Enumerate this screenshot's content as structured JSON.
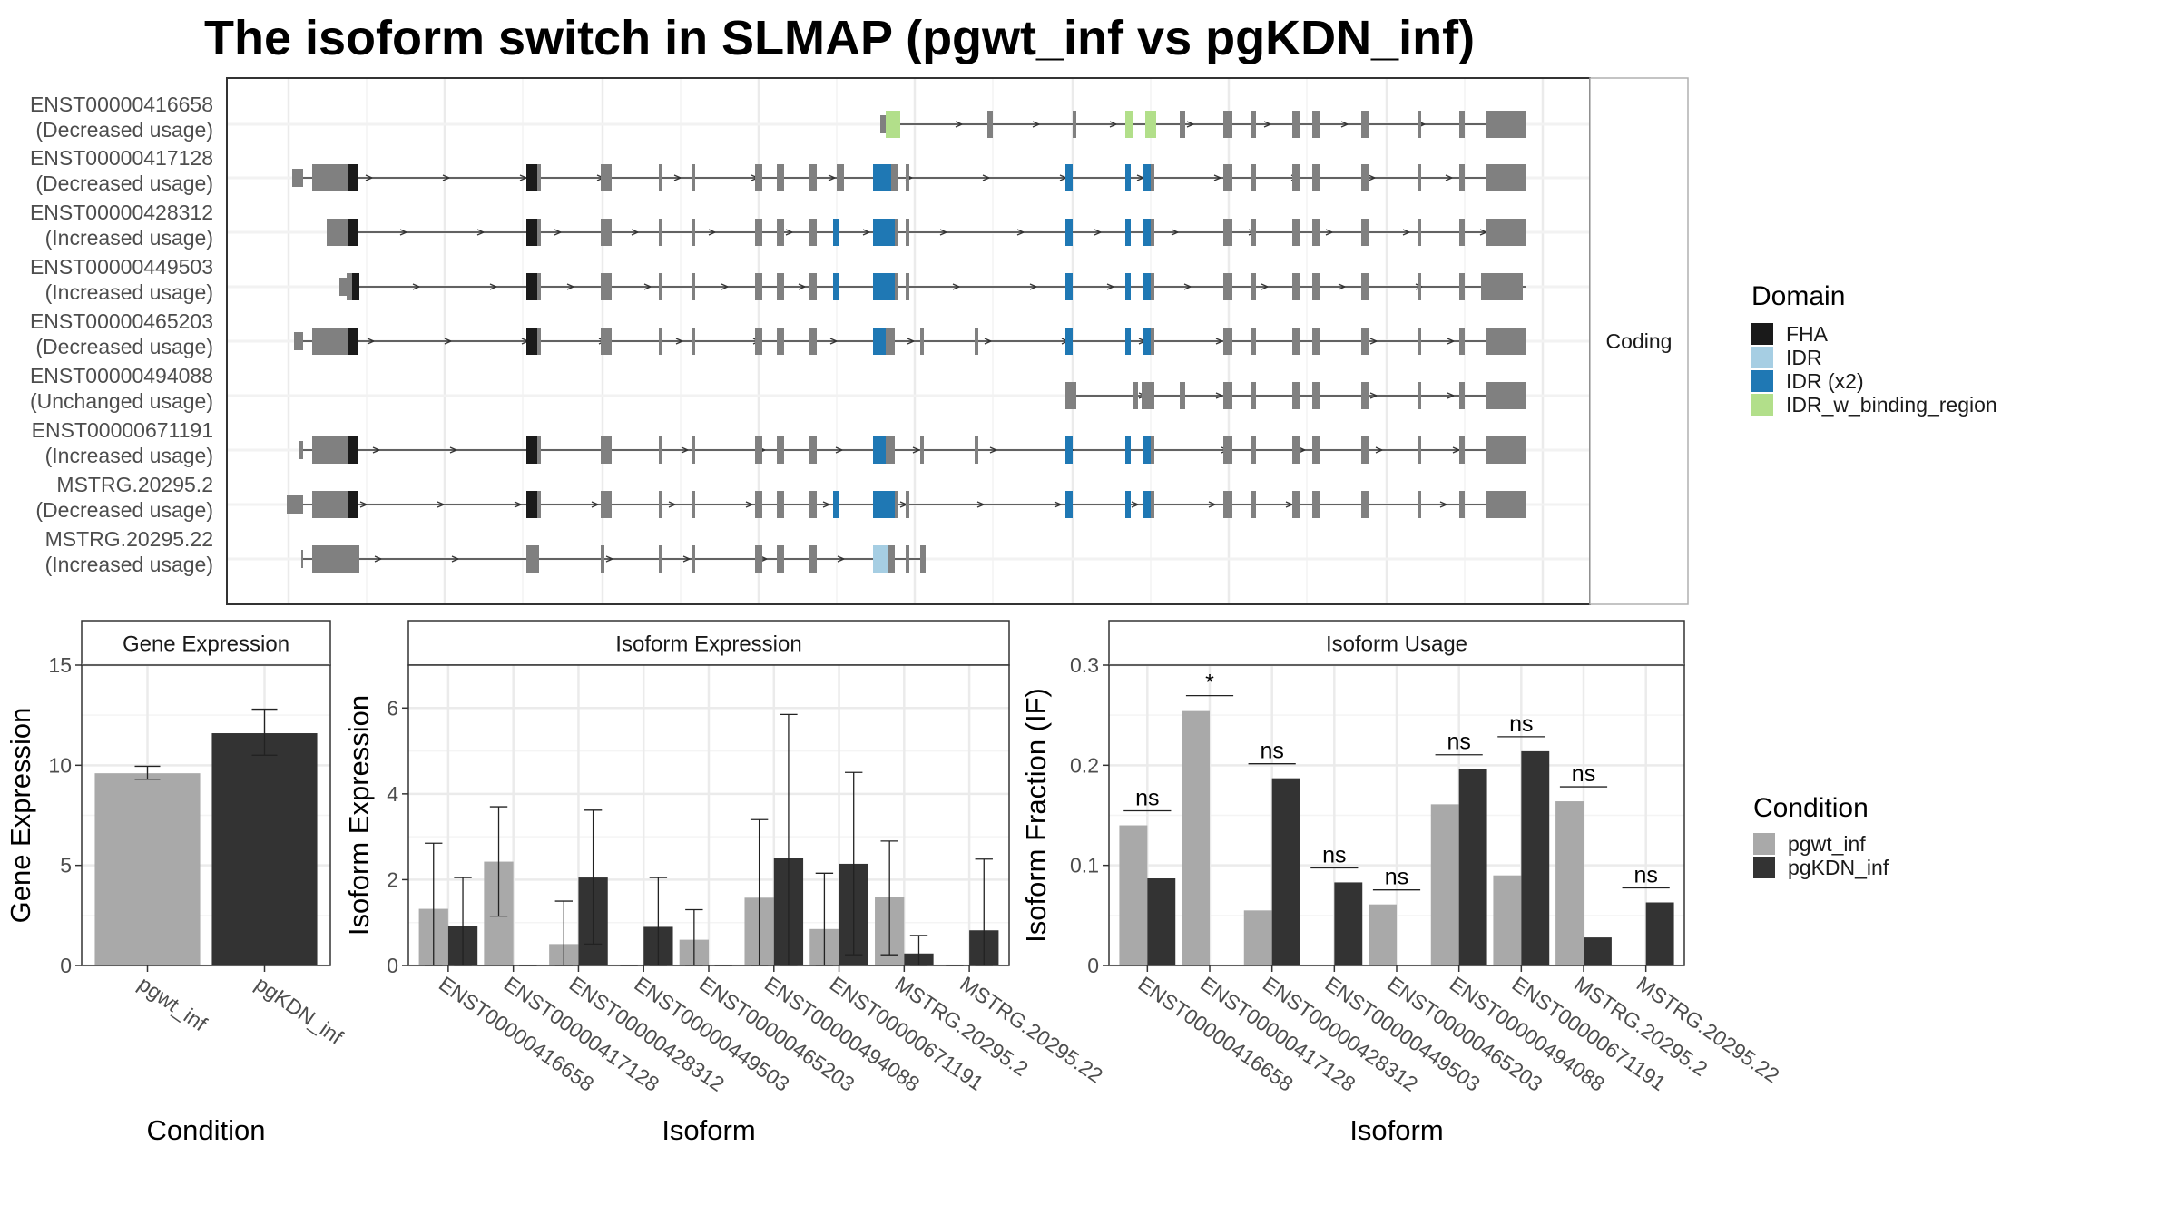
{
  "title": "The isoform switch in SLMAP (pgwt_inf vs pgKDN_inf)",
  "colors": {
    "FHA": "#1a1a1a",
    "IDR": "#a6cee3",
    "IDR (x2)": "#1f78b4",
    "IDR_w_binding_region": "#b2df8a",
    "exon": "#808080",
    "pgwt_inf": "#a9a9a9",
    "pgKDN_inf": "#333333",
    "grid": "#ebebeb"
  },
  "structure": {
    "facet_label": "Coding",
    "transcripts": [
      {
        "id": "ENST00000416658",
        "usage": "(Decreased usage)"
      },
      {
        "id": "ENST00000417128",
        "usage": "(Decreased usage)"
      },
      {
        "id": "ENST00000428312",
        "usage": "(Increased usage)"
      },
      {
        "id": "ENST00000449503",
        "usage": "(Increased usage)"
      },
      {
        "id": "ENST00000465203",
        "usage": "(Decreased usage)"
      },
      {
        "id": "ENST00000494088",
        "usage": "(Unchanged usage)"
      },
      {
        "id": "ENST00000671191",
        "usage": "(Increased usage)"
      },
      {
        "id": "MSTRG.20295.2",
        "usage": "(Decreased usage)"
      },
      {
        "id": "MSTRG.20295.22",
        "usage": "(Increased usage)"
      }
    ]
  },
  "legend_domain": {
    "title": "Domain",
    "items": [
      "FHA",
      "IDR",
      "IDR (x2)",
      "IDR_w_binding_region"
    ]
  },
  "legend_condition": {
    "title": "Condition",
    "items": [
      "pgwt_inf",
      "pgKDN_inf"
    ]
  },
  "chart_data": [
    {
      "type": "bar",
      "title": "Gene Expression",
      "xlabel": "Condition",
      "ylabel": "Gene Expression",
      "ylim": [
        0,
        15
      ],
      "yticks": [
        0,
        5,
        10,
        15
      ],
      "categories": [
        "pgwt_inf",
        "pgKDN_inf"
      ],
      "values": [
        9.6,
        11.6
      ],
      "errors": [
        [
          9.3,
          9.95
        ],
        [
          10.5,
          12.8
        ]
      ]
    },
    {
      "type": "bar",
      "title": "Isoform Expression",
      "xlabel": "Isoform",
      "ylabel": "Isoform Expression",
      "ylim": [
        0,
        7
      ],
      "yticks": [
        0,
        2,
        4,
        6
      ],
      "categories": [
        "ENST00000416658",
        "ENST00000417128",
        "ENST00000428312",
        "ENST00000449503",
        "ENST00000465203",
        "ENST00000494088",
        "ENST00000671191",
        "MSTRG.20295.2",
        "MSTRG.20295.22"
      ],
      "series": [
        {
          "name": "pgwt_inf",
          "values": [
            1.32,
            2.42,
            0.5,
            0,
            0.6,
            1.58,
            0.85,
            1.6,
            0
          ],
          "errors": [
            [
              0,
              2.85
            ],
            [
              1.15,
              3.7
            ],
            [
              0,
              1.5
            ],
            [
              0,
              0
            ],
            [
              0,
              1.3
            ],
            [
              0,
              3.4
            ],
            [
              0,
              2.15
            ],
            [
              0.25,
              2.9
            ],
            [
              0,
              0
            ]
          ]
        },
        {
          "name": "pgKDN_inf",
          "values": [
            0.93,
            0,
            2.05,
            0.9,
            0,
            2.5,
            2.37,
            0.28,
            0.82
          ],
          "errors": [
            [
              0,
              2.05
            ],
            [
              0,
              0
            ],
            [
              0.5,
              3.62
            ],
            [
              0,
              2.05
            ],
            [
              0,
              0
            ],
            [
              0,
              5.85
            ],
            [
              0.25,
              4.5
            ],
            [
              0,
              0.7
            ],
            [
              0,
              2.48
            ]
          ]
        }
      ]
    },
    {
      "type": "bar",
      "title": "Isoform Usage",
      "xlabel": "Isoform",
      "ylabel": "Isoform Fraction (IF)",
      "ylim": [
        0,
        0.3
      ],
      "yticks": [
        0.0,
        0.1,
        0.2,
        0.3
      ],
      "categories": [
        "ENST00000416658",
        "ENST00000417128",
        "ENST00000428312",
        "ENST00000449503",
        "ENST00000465203",
        "ENST00000494088",
        "ENST00000671191",
        "MSTRG.20295.2",
        "MSTRG.20295.22"
      ],
      "series": [
        {
          "name": "pgwt_inf",
          "values": [
            0.14,
            0.255,
            0.055,
            0,
            0.061,
            0.161,
            0.09,
            0.164,
            0
          ]
        },
        {
          "name": "pgKDN_inf",
          "values": [
            0.087,
            0,
            0.187,
            0.083,
            0,
            0.196,
            0.214,
            0.028,
            0.063
          ]
        }
      ],
      "significance": [
        "ns",
        "*",
        "ns",
        "ns",
        "ns",
        "ns",
        "ns",
        "ns",
        "ns"
      ]
    }
  ]
}
